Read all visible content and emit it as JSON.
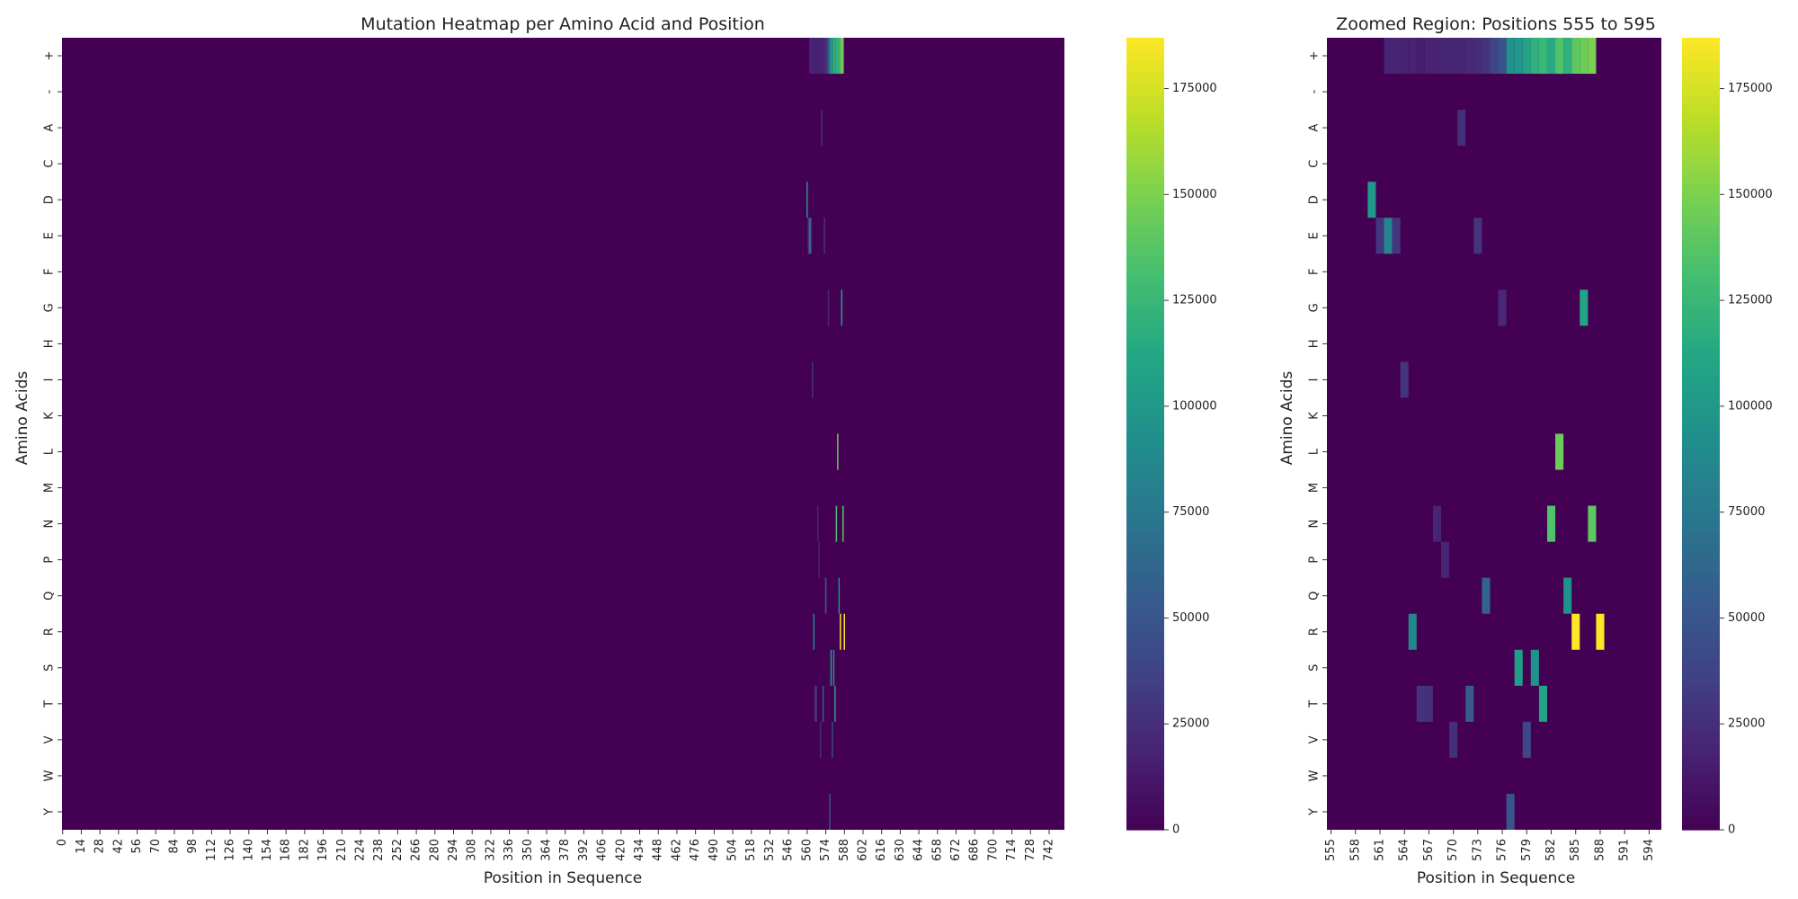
{
  "chart_data": [
    {
      "type": "heatmap",
      "title": "Mutation Heatmap per Amino Acid and Position",
      "xlabel": "Position in Sequence",
      "ylabel": "Amino Acids",
      "rows": [
        "+",
        "-",
        "A",
        "C",
        "D",
        "E",
        "F",
        "G",
        "H",
        "I",
        "K",
        "L",
        "M",
        "N",
        "P",
        "Q",
        "R",
        "S",
        "T",
        "V",
        "W",
        "Y"
      ],
      "x_range": [
        0,
        753
      ],
      "x_ticks": [
        0,
        14,
        28,
        42,
        56,
        70,
        84,
        98,
        112,
        126,
        140,
        154,
        168,
        182,
        196,
        210,
        224,
        238,
        252,
        266,
        280,
        294,
        308,
        322,
        336,
        350,
        364,
        378,
        392,
        406,
        420,
        434,
        448,
        462,
        476,
        490,
        504,
        518,
        532,
        546,
        560,
        574,
        588,
        602,
        616,
        630,
        644,
        658,
        672,
        686,
        700,
        714,
        728,
        742
      ],
      "colormap": "viridis",
      "vmin": 0,
      "vmax": 187000,
      "colorbar_ticks": [
        0,
        25000,
        50000,
        75000,
        100000,
        125000,
        150000,
        175000
      ],
      "cells": [
        {
          "row": "+",
          "pos": 562,
          "value": 20000
        },
        {
          "row": "+",
          "pos": 563,
          "value": 20000
        },
        {
          "row": "+",
          "pos": 564,
          "value": 18000
        },
        {
          "row": "+",
          "pos": 565,
          "value": 18000
        },
        {
          "row": "+",
          "pos": 566,
          "value": 16000
        },
        {
          "row": "+",
          "pos": 567,
          "value": 18000
        },
        {
          "row": "+",
          "pos": 568,
          "value": 18000
        },
        {
          "row": "+",
          "pos": 569,
          "value": 20000
        },
        {
          "row": "+",
          "pos": 570,
          "value": 20000
        },
        {
          "row": "+",
          "pos": 571,
          "value": 20000
        },
        {
          "row": "+",
          "pos": 572,
          "value": 22000
        },
        {
          "row": "+",
          "pos": 573,
          "value": 24000
        },
        {
          "row": "+",
          "pos": 574,
          "value": 28000
        },
        {
          "row": "+",
          "pos": 575,
          "value": 38000
        },
        {
          "row": "+",
          "pos": 576,
          "value": 50000
        },
        {
          "row": "+",
          "pos": 577,
          "value": 95000
        },
        {
          "row": "+",
          "pos": 578,
          "value": 100000
        },
        {
          "row": "+",
          "pos": 579,
          "value": 110000
        },
        {
          "row": "+",
          "pos": 580,
          "value": 120000
        },
        {
          "row": "+",
          "pos": 581,
          "value": 125000
        },
        {
          "row": "+",
          "pos": 582,
          "value": 115000
        },
        {
          "row": "+",
          "pos": 583,
          "value": 135000
        },
        {
          "row": "+",
          "pos": 584,
          "value": 120000
        },
        {
          "row": "+",
          "pos": 585,
          "value": 140000
        },
        {
          "row": "+",
          "pos": 586,
          "value": 145000
        },
        {
          "row": "+",
          "pos": 587,
          "value": 150000
        },
        {
          "row": "A",
          "pos": 571,
          "value": 25000
        },
        {
          "row": "D",
          "pos": 560,
          "value": 100000
        },
        {
          "row": "E",
          "pos": 561,
          "value": 30000
        },
        {
          "row": "E",
          "pos": 562,
          "value": 85000
        },
        {
          "row": "E",
          "pos": 563,
          "value": 30000
        },
        {
          "row": "E",
          "pos": 573,
          "value": 28000
        },
        {
          "row": "G",
          "pos": 576,
          "value": 22000
        },
        {
          "row": "G",
          "pos": 586,
          "value": 110000
        },
        {
          "row": "I",
          "pos": 564,
          "value": 28000
        },
        {
          "row": "L",
          "pos": 583,
          "value": 145000
        },
        {
          "row": "N",
          "pos": 568,
          "value": 20000
        },
        {
          "row": "N",
          "pos": 582,
          "value": 135000
        },
        {
          "row": "N",
          "pos": 587,
          "value": 140000
        },
        {
          "row": "P",
          "pos": 569,
          "value": 20000
        },
        {
          "row": "Q",
          "pos": 574,
          "value": 60000
        },
        {
          "row": "Q",
          "pos": 584,
          "value": 95000
        },
        {
          "row": "R",
          "pos": 565,
          "value": 85000
        },
        {
          "row": "R",
          "pos": 585,
          "value": 187000
        },
        {
          "row": "R",
          "pos": 588,
          "value": 187000
        },
        {
          "row": "S",
          "pos": 578,
          "value": 105000
        },
        {
          "row": "S",
          "pos": 580,
          "value": 95000
        },
        {
          "row": "T",
          "pos": 566,
          "value": 28000
        },
        {
          "row": "T",
          "pos": 567,
          "value": 25000
        },
        {
          "row": "T",
          "pos": 572,
          "value": 55000
        },
        {
          "row": "T",
          "pos": 581,
          "value": 110000
        },
        {
          "row": "V",
          "pos": 570,
          "value": 25000
        },
        {
          "row": "V",
          "pos": 579,
          "value": 40000
        },
        {
          "row": "Y",
          "pos": 577,
          "value": 50000
        }
      ]
    },
    {
      "type": "heatmap",
      "title": "Zoomed Region: Positions 555 to 595",
      "xlabel": "Position in Sequence",
      "ylabel": "Amino Acids",
      "rows": [
        "+",
        "-",
        "A",
        "C",
        "D",
        "E",
        "F",
        "G",
        "H",
        "I",
        "K",
        "L",
        "M",
        "N",
        "P",
        "Q",
        "R",
        "S",
        "T",
        "V",
        "W",
        "Y"
      ],
      "x_range": [
        555,
        595
      ],
      "x_ticks": [
        555,
        558,
        561,
        564,
        567,
        570,
        573,
        576,
        579,
        582,
        585,
        588,
        591,
        594
      ],
      "colormap": "viridis",
      "vmin": 0,
      "vmax": 187000,
      "colorbar_ticks": [
        0,
        25000,
        50000,
        75000,
        100000,
        125000,
        150000,
        175000
      ],
      "cells_source": "same data as full heatmap, restricted to positions 555-595"
    }
  ]
}
